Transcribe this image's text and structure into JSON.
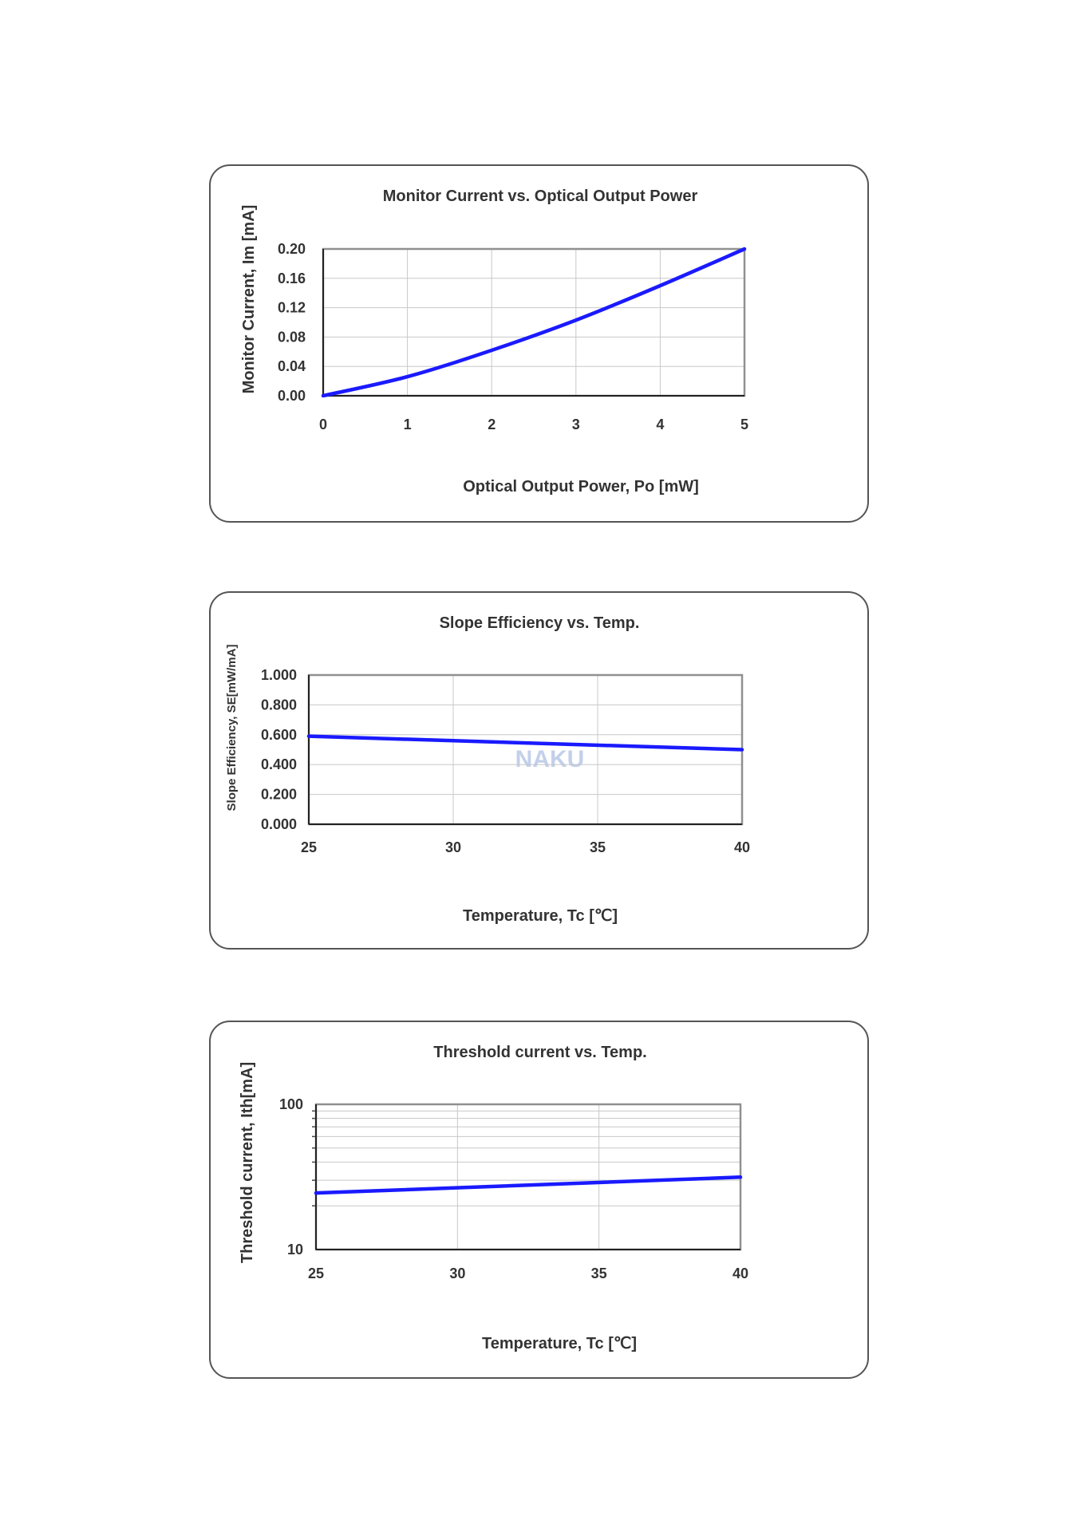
{
  "chart_data": [
    {
      "type": "line",
      "title": "Monitor Current vs. Optical Output Power",
      "xlabel": "Optical Output Power, Po [mW]",
      "ylabel": "Monitor Current, Im [mA]",
      "xlim": [
        0,
        5
      ],
      "ylim": [
        0,
        0.2
      ],
      "x_ticks": [
        "0",
        "1",
        "2",
        "3",
        "4",
        "5"
      ],
      "y_ticks": [
        "0.00",
        "0.04",
        "0.08",
        "0.12",
        "0.16",
        "0.20"
      ],
      "grid": true,
      "y_scale": "linear",
      "series": [
        {
          "x": [
            0,
            1,
            2,
            3,
            4,
            5
          ],
          "values": [
            0.0,
            0.026,
            0.062,
            0.103,
            0.15,
            0.2
          ]
        }
      ],
      "line_color": "#1a1aff"
    },
    {
      "type": "line",
      "title": "Slope Efficiency vs. Temp.",
      "xlabel": "Temperature, Tc [℃]",
      "ylabel": "Slope Efficiency, SE[mW/mA]",
      "xlim": [
        25,
        40
      ],
      "ylim": [
        0,
        1
      ],
      "x_ticks": [
        "25",
        "30",
        "35",
        "40"
      ],
      "y_ticks": [
        "0.000",
        "0.200",
        "0.400",
        "0.600",
        "0.800",
        "1.000"
      ],
      "grid": true,
      "y_scale": "linear",
      "watermark": "NAKU",
      "series": [
        {
          "x": [
            25,
            40
          ],
          "values": [
            0.59,
            0.5
          ]
        }
      ],
      "line_color": "#1a1aff"
    },
    {
      "type": "line",
      "title": "Threshold current vs. Temp.",
      "xlabel": "Temperature, Tc [℃]",
      "ylabel": "Threshold current, Ith[mA]",
      "xlim": [
        25,
        40
      ],
      "ylim": [
        10,
        100
      ],
      "x_ticks": [
        "25",
        "30",
        "35",
        "40"
      ],
      "y_ticks": [
        "10",
        "100"
      ],
      "grid": true,
      "y_scale": "log",
      "series": [
        {
          "x": [
            25,
            40
          ],
          "values": [
            24.5,
            31.5
          ]
        }
      ],
      "line_color": "#1a1aff"
    }
  ]
}
